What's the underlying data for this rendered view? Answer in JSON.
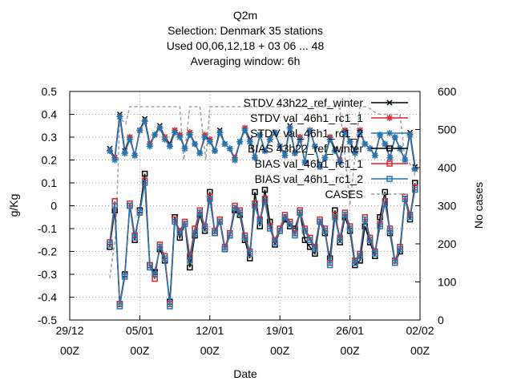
{
  "chart_data": {
    "type": "line",
    "title_lines": [
      "Q2m",
      "Selection: Denmark      35 stations",
      "Used  00,06,12,18  + 03 06 ... 48",
      "Averaging window:  6h"
    ],
    "xlabel": "Date",
    "ylabel": "g/Kg",
    "y2label": "No cases",
    "x_ticks": [
      {
        "x": 0,
        "line1": "29/12",
        "line2": "00Z"
      },
      {
        "x": 7,
        "line1": "05/01",
        "line2": "00Z"
      },
      {
        "x": 14,
        "line1": "12/01",
        "line2": "00Z"
      },
      {
        "x": 21,
        "line1": "19/01",
        "line2": "00Z"
      },
      {
        "x": 28,
        "line1": "26/01",
        "line2": "00Z"
      },
      {
        "x": 35,
        "line1": "02/02",
        "line2": "00Z"
      }
    ],
    "xlim": [
      0,
      35
    ],
    "ylim": [
      -0.5,
      0.5
    ],
    "y_ticks": [
      "-0.5",
      "-0.4",
      "-0.3",
      "-0.2",
      "-0.1",
      "0",
      "0.1",
      "0.2",
      "0.3",
      "0.4",
      "0.5"
    ],
    "y2lim": [
      0,
      600
    ],
    "y2_ticks": [
      "0",
      "100",
      "200",
      "300",
      "400",
      "500",
      "600"
    ],
    "grid": true,
    "legend_position": "top-right",
    "series": [
      {
        "name": "STDV 43h22_ref_winter",
        "axis": "y",
        "color": "#000000",
        "marker": "x",
        "x": [
          4.0,
          4.5,
          5.0,
          5.5,
          6.0,
          6.5,
          7.0,
          7.5,
          8.0,
          8.5,
          9.0,
          9.5,
          10.0,
          10.5,
          11.0,
          11.5,
          12.0,
          12.5,
          13.0,
          13.5,
          14.0,
          14.5,
          15.0,
          15.5,
          16.0,
          16.5,
          17.0,
          17.5,
          18.0,
          18.5,
          19.0,
          19.5,
          20.0,
          20.5,
          21.0,
          21.5,
          22.0,
          22.5,
          23.0,
          23.5,
          24.0,
          24.5,
          25.0,
          25.5,
          26.0,
          26.5,
          27.0,
          27.5,
          28.0,
          28.5,
          29.0,
          29.5,
          30.0,
          30.5,
          31.0,
          31.5,
          32.0,
          32.5,
          33.0,
          33.5,
          34.0,
          34.5
        ],
        "y": [
          0.25,
          0.21,
          0.4,
          0.24,
          0.3,
          0.22,
          0.33,
          0.38,
          0.27,
          0.31,
          0.35,
          0.3,
          0.27,
          0.33,
          0.31,
          0.25,
          0.32,
          0.27,
          0.23,
          0.3,
          0.29,
          0.24,
          0.33,
          0.27,
          0.25,
          0.2,
          0.28,
          0.34,
          0.29,
          0.21,
          0.31,
          0.24,
          0.29,
          0.32,
          0.26,
          0.22,
          0.35,
          0.23,
          0.3,
          0.19,
          0.33,
          0.26,
          0.17,
          0.21,
          0.3,
          0.25,
          0.19,
          0.33,
          0.28,
          0.24,
          0.33,
          0.27,
          0.25,
          0.22,
          0.31,
          0.27,
          0.21,
          0.3,
          0.25,
          0.2,
          0.32,
          0.17
        ]
      },
      {
        "name": "STDV val_46h1_rc1_1",
        "axis": "y",
        "color": "#d62728",
        "marker": "star",
        "x": [
          4.0,
          4.5,
          5.0,
          5.5,
          6.0,
          6.5,
          7.0,
          7.5,
          8.0,
          8.5,
          9.0,
          9.5,
          10.0,
          10.5,
          11.0,
          11.5,
          12.0,
          12.5,
          13.0,
          13.5,
          14.0,
          14.5,
          15.0,
          15.5,
          16.0,
          16.5,
          17.0,
          17.5,
          18.0,
          18.5,
          19.0,
          19.5,
          20.0,
          20.5,
          21.0,
          21.5,
          22.0,
          22.5,
          23.0,
          23.5,
          24.0,
          24.5,
          25.0,
          25.5,
          26.0,
          26.5,
          27.0,
          27.5,
          28.0,
          28.5,
          29.0,
          29.5,
          30.0,
          30.5,
          31.0,
          31.5,
          32.0,
          32.5,
          33.0,
          33.5,
          34.0,
          34.5
        ],
        "y": [
          0.24,
          0.21,
          0.39,
          0.23,
          0.3,
          0.22,
          0.33,
          0.37,
          0.27,
          0.31,
          0.34,
          0.3,
          0.26,
          0.33,
          0.31,
          0.25,
          0.32,
          0.27,
          0.23,
          0.31,
          0.29,
          0.24,
          0.32,
          0.27,
          0.25,
          0.21,
          0.28,
          0.34,
          0.28,
          0.21,
          0.31,
          0.24,
          0.29,
          0.32,
          0.26,
          0.22,
          0.34,
          0.23,
          0.3,
          0.19,
          0.33,
          0.26,
          0.17,
          0.21,
          0.3,
          0.24,
          0.2,
          0.33,
          0.28,
          0.23,
          0.33,
          0.27,
          0.25,
          0.22,
          0.31,
          0.27,
          0.21,
          0.3,
          0.25,
          0.2,
          0.31,
          0.16
        ]
      },
      {
        "name": "STDV val_46h1_rc1_2",
        "axis": "y",
        "color": "#1f77b4",
        "marker": "star",
        "x": [
          4.0,
          4.5,
          5.0,
          5.5,
          6.0,
          6.5,
          7.0,
          7.5,
          8.0,
          8.5,
          9.0,
          9.5,
          10.0,
          10.5,
          11.0,
          11.5,
          12.0,
          12.5,
          13.0,
          13.5,
          14.0,
          14.5,
          15.0,
          15.5,
          16.0,
          16.5,
          17.0,
          17.5,
          18.0,
          18.5,
          19.0,
          19.5,
          20.0,
          20.5,
          21.0,
          21.5,
          22.0,
          22.5,
          23.0,
          23.5,
          24.0,
          24.5,
          25.0,
          25.5,
          26.0,
          26.5,
          27.0,
          27.5,
          28.0,
          28.5,
          29.0,
          29.5,
          30.0,
          30.5,
          31.0,
          31.5,
          32.0,
          32.5,
          33.0,
          33.5,
          34.0,
          34.5
        ],
        "y": [
          0.24,
          0.2,
          0.39,
          0.23,
          0.29,
          0.22,
          0.33,
          0.37,
          0.26,
          0.31,
          0.34,
          0.29,
          0.26,
          0.32,
          0.3,
          0.25,
          0.31,
          0.27,
          0.23,
          0.3,
          0.28,
          0.24,
          0.32,
          0.27,
          0.25,
          0.2,
          0.28,
          0.33,
          0.28,
          0.21,
          0.31,
          0.24,
          0.29,
          0.32,
          0.26,
          0.22,
          0.34,
          0.23,
          0.29,
          0.19,
          0.33,
          0.26,
          0.17,
          0.21,
          0.29,
          0.24,
          0.19,
          0.32,
          0.28,
          0.23,
          0.32,
          0.27,
          0.25,
          0.22,
          0.31,
          0.27,
          0.21,
          0.3,
          0.25,
          0.2,
          0.31,
          0.16
        ]
      },
      {
        "name": "BIAS 43h22_ref_winter",
        "axis": "y",
        "color": "#000000",
        "marker": "square",
        "x": [
          4.0,
          4.5,
          5.0,
          5.5,
          6.0,
          6.5,
          7.0,
          7.5,
          8.0,
          8.5,
          9.0,
          9.5,
          10.0,
          10.5,
          11.0,
          11.5,
          12.0,
          12.5,
          13.0,
          13.5,
          14.0,
          14.5,
          15.0,
          15.5,
          16.0,
          16.5,
          17.0,
          17.5,
          18.0,
          18.5,
          19.0,
          19.5,
          20.0,
          20.5,
          21.0,
          21.5,
          22.0,
          22.5,
          23.0,
          23.5,
          24.0,
          24.5,
          25.0,
          25.5,
          26.0,
          26.5,
          27.0,
          27.5,
          28.0,
          28.5,
          29.0,
          29.5,
          30.0,
          30.5,
          31.0,
          31.5,
          32.0,
          32.5,
          33.0,
          33.5,
          34.0,
          34.5
        ],
        "y": [
          -0.18,
          -0.02,
          -0.43,
          -0.3,
          0.0,
          -0.15,
          -0.02,
          0.14,
          -0.26,
          -0.29,
          -0.19,
          -0.24,
          -0.42,
          -0.05,
          -0.14,
          -0.08,
          -0.27,
          -0.13,
          -0.04,
          -0.11,
          0.06,
          -0.12,
          -0.07,
          -0.19,
          -0.13,
          -0.02,
          -0.04,
          -0.15,
          -0.23,
          0.06,
          -0.09,
          0.07,
          -0.07,
          -0.17,
          -0.11,
          -0.06,
          -0.09,
          -0.1,
          -0.03,
          -0.15,
          -0.18,
          -0.21,
          -0.07,
          -0.12,
          -0.23,
          -0.02,
          -0.16,
          -0.05,
          -0.11,
          -0.26,
          -0.24,
          -0.09,
          -0.16,
          -0.22,
          -0.05,
          0.06,
          -0.12,
          -0.25,
          -0.2,
          0.03,
          -0.06,
          0.1
        ]
      },
      {
        "name": "BIAS val_46h1_rc1_1",
        "axis": "y",
        "color": "#d62728",
        "marker": "square",
        "x": [
          4.0,
          4.5,
          5.0,
          5.5,
          6.0,
          6.5,
          7.0,
          7.5,
          8.0,
          8.5,
          9.0,
          9.5,
          10.0,
          10.5,
          11.0,
          11.5,
          12.0,
          12.5,
          13.0,
          13.5,
          14.0,
          14.5,
          15.0,
          15.5,
          16.0,
          16.5,
          17.0,
          17.5,
          18.0,
          18.5,
          19.0,
          19.5,
          20.0,
          20.5,
          21.0,
          21.5,
          22.0,
          22.5,
          23.0,
          23.5,
          24.0,
          24.5,
          25.0,
          25.5,
          26.0,
          26.5,
          27.0,
          27.5,
          28.0,
          28.5,
          29.0,
          29.5,
          30.0,
          30.5,
          31.0,
          31.5,
          32.0,
          32.5,
          33.0,
          33.5,
          34.0,
          34.5
        ],
        "y": [
          -0.16,
          0.02,
          -0.43,
          -0.31,
          0.01,
          -0.13,
          -0.03,
          0.11,
          -0.26,
          -0.32,
          -0.17,
          -0.22,
          -0.43,
          -0.06,
          -0.11,
          -0.07,
          -0.22,
          -0.1,
          -0.02,
          -0.09,
          0.04,
          -0.11,
          -0.06,
          -0.18,
          -0.12,
          0.0,
          -0.02,
          -0.13,
          -0.2,
          0.01,
          -0.06,
          0.03,
          -0.09,
          -0.15,
          -0.1,
          -0.04,
          -0.07,
          -0.12,
          -0.02,
          -0.1,
          -0.14,
          -0.18,
          -0.06,
          -0.1,
          -0.25,
          -0.04,
          -0.14,
          -0.03,
          -0.09,
          -0.24,
          -0.21,
          -0.05,
          -0.14,
          -0.2,
          -0.08,
          0.02,
          -0.1,
          -0.24,
          -0.18,
          0.04,
          -0.04,
          0.08
        ]
      },
      {
        "name": "BIAS val_46h1_rc1_2",
        "axis": "y",
        "color": "#1f77b4",
        "marker": "square",
        "x": [
          4.0,
          4.5,
          5.0,
          5.5,
          6.0,
          6.5,
          7.0,
          7.5,
          8.0,
          8.5,
          9.0,
          9.5,
          10.0,
          10.5,
          11.0,
          11.5,
          12.0,
          12.5,
          13.0,
          13.5,
          14.0,
          14.5,
          15.0,
          15.5,
          16.0,
          16.5,
          17.0,
          17.5,
          18.0,
          18.5,
          19.0,
          19.5,
          20.0,
          20.5,
          21.0,
          21.5,
          22.0,
          22.5,
          23.0,
          23.5,
          24.0,
          24.5,
          25.0,
          25.5,
          26.0,
          26.5,
          27.0,
          27.5,
          28.0,
          28.5,
          29.0,
          29.5,
          30.0,
          30.5,
          31.0,
          31.5,
          32.0,
          32.5,
          33.0,
          33.5,
          34.0,
          34.5
        ],
        "y": [
          -0.17,
          0.0,
          -0.44,
          -0.31,
          0.0,
          -0.14,
          -0.03,
          0.1,
          -0.27,
          -0.3,
          -0.18,
          -0.23,
          -0.44,
          -0.07,
          -0.12,
          -0.08,
          -0.24,
          -0.12,
          -0.03,
          -0.1,
          0.03,
          -0.12,
          -0.07,
          -0.19,
          -0.13,
          -0.01,
          -0.03,
          -0.14,
          -0.21,
          0.0,
          -0.07,
          0.02,
          -0.1,
          -0.16,
          -0.11,
          -0.05,
          -0.08,
          -0.13,
          -0.03,
          -0.11,
          -0.15,
          -0.19,
          -0.07,
          -0.11,
          -0.26,
          -0.05,
          -0.15,
          -0.04,
          -0.1,
          -0.25,
          -0.22,
          -0.06,
          -0.15,
          -0.21,
          -0.09,
          0.01,
          -0.11,
          -0.25,
          -0.19,
          0.03,
          -0.05,
          0.07
        ]
      },
      {
        "name": "CASES",
        "axis": "y2",
        "color": "#a0a0a0",
        "marker": "none",
        "dashed": true,
        "x": [
          4.0,
          4.6,
          5.0,
          5.6,
          6.0,
          6.6,
          7.0,
          8.0,
          9.0,
          10.0,
          11.0,
          11.4,
          12.0,
          13.0,
          13.6,
          14.0,
          15.0,
          16.0,
          16.5,
          17.0,
          18.0,
          19.0,
          20.0,
          21.0,
          22.0,
          23.0,
          24.0,
          25.0,
          26.0,
          26.5,
          27.0,
          28.0,
          29.0,
          29.5,
          30.0,
          30.5,
          31.0,
          32.0,
          33.0,
          33.5,
          34.0,
          34.5
        ],
        "y": [
          110,
          225,
          530,
          515,
          560,
          560,
          560,
          560,
          560,
          560,
          560,
          420,
          560,
          560,
          420,
          560,
          560,
          560,
          560,
          560,
          560,
          560,
          560,
          560,
          560,
          560,
          560,
          560,
          560,
          560,
          555,
          300,
          560,
          560,
          555,
          545,
          540,
          540,
          540,
          420,
          410,
          380
        ]
      }
    ]
  }
}
